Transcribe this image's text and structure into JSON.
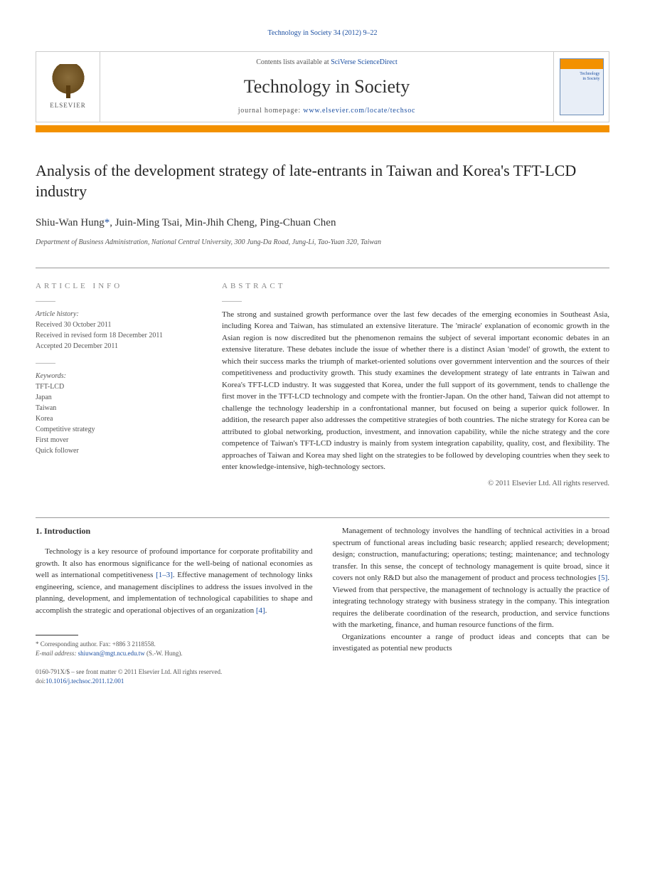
{
  "journal_header": {
    "text_prefix": "",
    "link_text": "Technology in Society 34 (2012) 9–22",
    "link_href": "#"
  },
  "banner": {
    "elsevier_label": "ELSEVIER",
    "contents_prefix": "Contents lists available at ",
    "contents_link": "SciVerse ScienceDirect",
    "journal_title": "Technology in Society",
    "homepage_prefix": "journal homepage: ",
    "homepage_url": "www.elsevier.com/locate/techsoc",
    "cover_title_line1": "Technology",
    "cover_title_line2": "in Society"
  },
  "article": {
    "title": "Analysis of the development strategy of late-entrants in Taiwan and Korea's TFT-LCD industry",
    "authors_html": "Shiu-Wan Hung",
    "author1": "Shiu-Wan Hung",
    "corr_marker": "*",
    "author_rest": ", Juin-Ming Tsai, Min-Jhih Cheng, Ping-Chuan Chen",
    "affiliation": "Department of Business Administration, National Central University, 300 Jung-Da Road, Jung-Li, Tao-Yuan 320, Taiwan"
  },
  "article_info": {
    "heading": "ARTICLE INFO",
    "history_label": "Article history:",
    "received": "Received 30 October 2011",
    "revised": "Received in revised form 18 December 2011",
    "accepted": "Accepted 20 December 2011",
    "keywords_label": "Keywords:",
    "keywords": [
      "TFT-LCD",
      "Japan",
      "Taiwan",
      "Korea",
      "Competitive strategy",
      "First mover",
      "Quick follower"
    ]
  },
  "abstract": {
    "heading": "ABSTRACT",
    "text": "The strong and sustained growth performance over the last few decades of the emerging economies in Southeast Asia, including Korea and Taiwan, has stimulated an extensive literature. The 'miracle' explanation of economic growth in the Asian region is now discredited but the phenomenon remains the subject of several important economic debates in an extensive literature. These debates include the issue of whether there is a distinct Asian 'model' of growth, the extent to which their success marks the triumph of market-oriented solutions over government intervention and the sources of their competitiveness and productivity growth. This study examines the development strategy of late entrants in Taiwan and Korea's TFT-LCD industry. It was suggested that Korea, under the full support of its government, tends to challenge the first mover in the TFT-LCD technology and compete with the frontier-Japan. On the other hand, Taiwan did not attempt to challenge the technology leadership in a confrontational manner, but focused on being a superior quick follower. In addition, the research paper also addresses the competitive strategies of both countries. The niche strategy for Korea can be attributed to global networking, production, investment, and innovation capability, while the niche strategy and the core competence of Taiwan's TFT-LCD industry is mainly from system integration capability, quality, cost, and flexibility. The approaches of Taiwan and Korea may shed light on the strategies to be followed by developing countries when they seek to enter knowledge-intensive, high-technology sectors.",
    "copyright": "© 2011 Elsevier Ltd. All rights reserved."
  },
  "body": {
    "section_heading": "1. Introduction",
    "left_p1_part1": "Technology is a key resource of profound importance for corporate profitability and growth. It also has enormous significance for the well-being of national economies as well as international competitiveness ",
    "left_cite1": "[1–3]",
    "left_p1_part2": ". Effective management of technology links engineering, science, and management disciplines to address the issues involved in the planning, development, and implementation of technological capabilities to shape and accomplish the strategic and operational objectives of an organization ",
    "left_cite2": "[4]",
    "left_p1_part3": ".",
    "right_p1_part1": "Management of technology involves the handling of technical activities in a broad spectrum of functional areas including basic research; applied research; development; design; construction, manufacturing; operations; testing; maintenance; and technology transfer. In this sense, the concept of technology management is quite broad, since it covers not only R&D but also the management of product and process technologies ",
    "right_cite1": "[5]",
    "right_p1_part2": ". Viewed from that perspective, the management of technology is actually the practice of integrating technology strategy with business strategy in the company. This integration requires the deliberate coordination of the research, production, and service functions with the marketing, finance, and human resource functions of the firm.",
    "right_p2": "Organizations encounter a range of product ideas and concepts that can be investigated as potential new products"
  },
  "footnote": {
    "corr_label": "* Corresponding author. Fax: +886 3 2118558.",
    "email_label": "E-mail address: ",
    "email": "shiuwan@mgt.ncu.edu.tw",
    "email_suffix": " (S.-W. Hung)."
  },
  "footer": {
    "line1": "0160-791X/$ – see front matter © 2011 Elsevier Ltd. All rights reserved.",
    "doi_prefix": "doi:",
    "doi": "10.1016/j.techsoc.2011.12.001"
  },
  "colors": {
    "link": "#1d50a2",
    "orange": "#f39100",
    "text": "#333333",
    "muted": "#676767"
  }
}
